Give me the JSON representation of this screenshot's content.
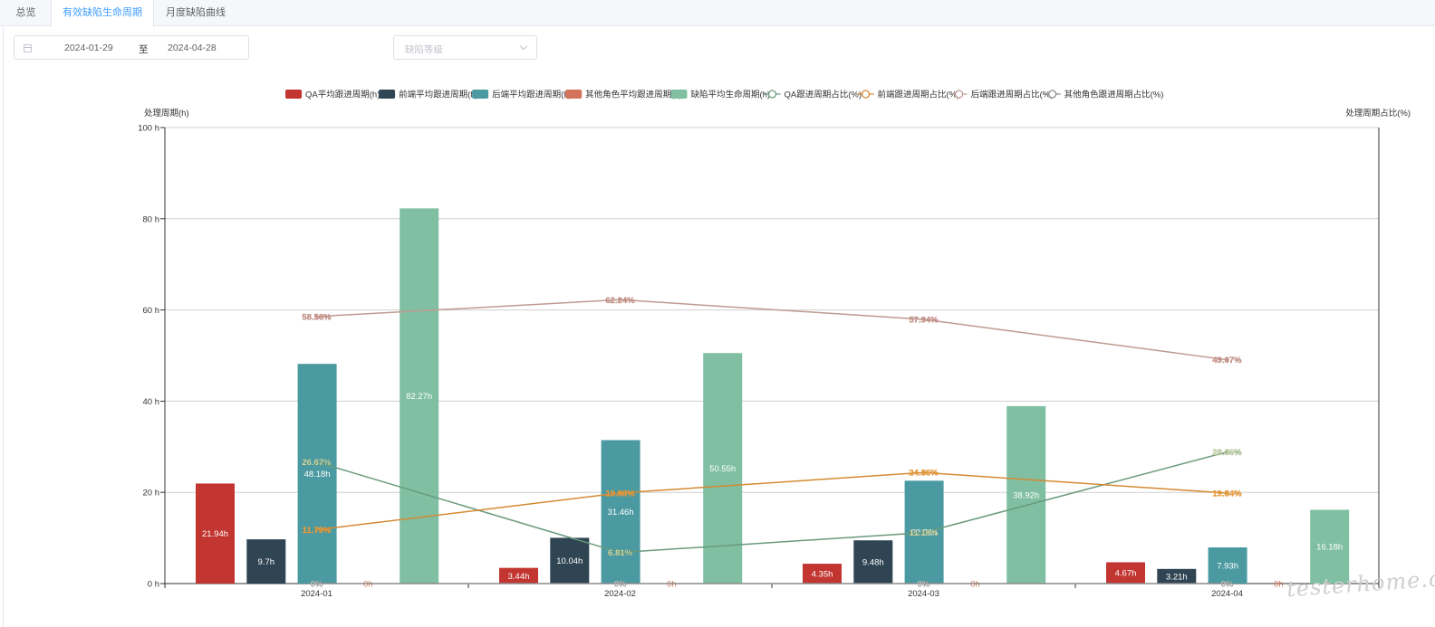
{
  "tabs": [
    {
      "label": "总览",
      "active": false
    },
    {
      "label": "有效缺陷生命周期",
      "active": true
    },
    {
      "label": "月度缺陷曲线",
      "active": false
    }
  ],
  "filters": {
    "start_date": "2024-01-29",
    "range_separator": "至",
    "end_date": "2024-04-28",
    "level_placeholder": "缺陷等级"
  },
  "watermark": "testerhome.com",
  "chart_data": {
    "type": "bar",
    "title": "",
    "categories": [
      "2024-01",
      "2024-02",
      "2024-03",
      "2024-04"
    ],
    "ylabel": "处理周期(h)",
    "ylabel_right": "处理周期占比(%)",
    "ylim": [
      0,
      100
    ],
    "yticks": [
      "0 h",
      "20 h",
      "40 h",
      "60 h",
      "80 h",
      "100 h"
    ],
    "ylim_right": [
      0,
      100
    ],
    "grid": true,
    "legend_position": "top",
    "bar_series": [
      {
        "name": "QA平均跟进周期(h)",
        "color": "#c23531",
        "values": [
          21.94,
          3.44,
          4.35,
          4.67
        ],
        "labels": [
          "21.94h",
          "3.44h",
          "4.35h",
          "4.67h"
        ]
      },
      {
        "name": "前端平均跟进周期(h)",
        "color": "#2f4554",
        "values": [
          9.7,
          10.04,
          9.48,
          3.21
        ],
        "labels": [
          "9.7h",
          "10.04h",
          "9.48h",
          "3.21h"
        ]
      },
      {
        "name": "后端平均跟进周期(h)",
        "color": "#4b9aa1",
        "values": [
          48.18,
          31.46,
          22.56,
          7.93
        ],
        "labels": [
          "48.18h",
          "31.46h",
          "22.56h",
          "7.93h"
        ]
      },
      {
        "name": "其他角色平均跟进周期(h)",
        "color": "#d4735c",
        "values": [
          0,
          0,
          0,
          0
        ],
        "labels": [
          "0h",
          "0h",
          "0h",
          "0h"
        ]
      },
      {
        "name": "缺陷平均生命周期(h)",
        "color": "#80bfa2",
        "values": [
          82.27,
          50.55,
          38.92,
          16.18
        ],
        "labels": [
          "82.27h",
          "50.55h",
          "38.92h",
          "16.18h"
        ]
      }
    ],
    "line_series": [
      {
        "name": "QA跟进周期占比(%)",
        "color": "#6a9a7d",
        "label_color": "#f7e9b0",
        "values": [
          26.67,
          6.81,
          11.18,
          28.86
        ],
        "labels": [
          "26.67%",
          "6.81%",
          "11.18%",
          "28.86%"
        ]
      },
      {
        "name": "前端跟进周期占比(%)",
        "color": "#d48a33",
        "label_color": "#f0a640",
        "values": [
          11.79,
          19.86,
          24.36,
          19.84
        ],
        "labels": [
          "11.79%",
          "19.86%",
          "24.36%",
          "19.84%"
        ]
      },
      {
        "name": "后端跟进周期占比(%)",
        "color": "#bf9a91",
        "label_color": "#c98a80",
        "values": [
          58.56,
          62.24,
          57.94,
          49.07
        ],
        "labels": [
          "58.56%",
          "62.24%",
          "57.94%",
          "49.07%"
        ]
      },
      {
        "name": "其他角色跟进周期占比(%)",
        "color": "#8a8a8a",
        "label_color": "#cfcfcf",
        "values": [
          0,
          0,
          0,
          0
        ],
        "labels": [
          "0%",
          "0%",
          "0%",
          "0%"
        ]
      }
    ]
  }
}
